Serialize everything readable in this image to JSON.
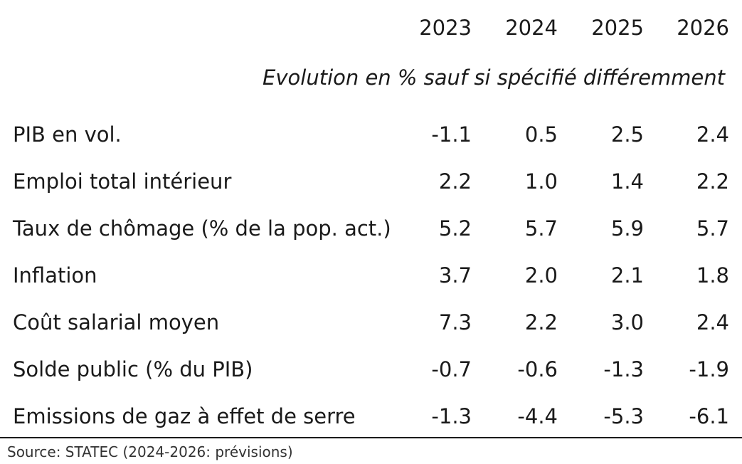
{
  "chart_data": {
    "type": "table",
    "columns": [
      "2023",
      "2024",
      "2025",
      "2026"
    ],
    "subtitle": "Evolution en % sauf si spécifié différemment",
    "rows": [
      {
        "label": "PIB en vol.",
        "values": [
          "-1.1",
          "0.5",
          "2.5",
          "2.4"
        ]
      },
      {
        "label": "Emploi total intérieur",
        "values": [
          "2.2",
          "1.0",
          "1.4",
          "2.2"
        ]
      },
      {
        "label": "Taux de chômage (% de la pop. act.)",
        "values": [
          "5.2",
          "5.7",
          "5.9",
          "5.7"
        ]
      },
      {
        "label": "Inflation",
        "values": [
          "3.7",
          "2.0",
          "2.1",
          "1.8"
        ]
      },
      {
        "label": "Coût salarial moyen",
        "values": [
          "7.3",
          "2.2",
          "3.0",
          "2.4"
        ]
      },
      {
        "label": "Solde public (% du PIB)",
        "values": [
          "-0.7",
          "-0.6",
          "-1.3",
          "-1.9"
        ]
      },
      {
        "label": "Emissions de gaz à effet de serre",
        "values": [
          "-1.3",
          "-4.4",
          "-5.3",
          "-6.1"
        ]
      }
    ],
    "source": "Source: STATEC (2024-2026: prévisions)"
  }
}
